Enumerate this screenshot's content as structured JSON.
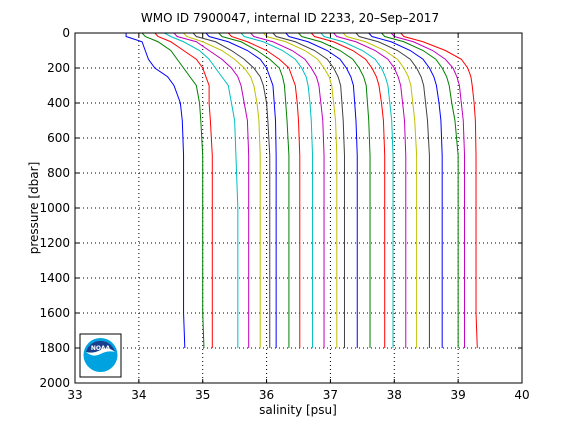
{
  "chart_data": {
    "type": "line",
    "title": "WMO ID 7900047, internal ID 2233, 20–Sep–2017",
    "xlabel": "salinity [psu]",
    "ylabel": "pressure [dbar]",
    "xlim": [
      33,
      40
    ],
    "ylim": [
      2000,
      0
    ],
    "y_reversed": true,
    "grid": true,
    "grid_style": "dotted",
    "xticks": [
      "33",
      "34",
      "35",
      "36",
      "37",
      "38",
      "39",
      "40"
    ],
    "yticks": [
      "0",
      "200",
      "400",
      "600",
      "800",
      "1000",
      "1200",
      "1400",
      "1600",
      "1800",
      "2000"
    ],
    "pressure_levels": [
      0,
      20,
      50,
      100,
      150,
      200,
      250,
      300,
      400,
      500,
      700,
      1000,
      1300,
      1600,
      1800
    ],
    "series": [
      {
        "color": "#0000ff",
        "values": [
          33.8,
          33.8,
          34.05,
          34.1,
          34.15,
          34.25,
          34.45,
          34.55,
          34.65,
          34.68,
          34.7,
          34.7,
          34.7,
          34.7,
          34.72
        ]
      },
      {
        "color": "#008000",
        "values": [
          34.05,
          34.1,
          34.3,
          34.5,
          34.6,
          34.7,
          34.8,
          34.9,
          34.95,
          34.97,
          35.0,
          35.0,
          35.0,
          35.0,
          35.02
        ]
      },
      {
        "color": "#ff0000",
        "values": [
          34.25,
          34.3,
          34.5,
          34.7,
          34.9,
          35.0,
          35.05,
          35.1,
          35.1,
          35.12,
          35.15,
          35.15,
          35.15,
          35.15,
          35.15
        ]
      },
      {
        "color": "#00bfbf",
        "values": [
          34.4,
          34.5,
          34.7,
          34.95,
          35.1,
          35.2,
          35.3,
          35.4,
          35.45,
          35.5,
          35.52,
          35.55,
          35.55,
          35.55,
          35.55
        ]
      },
      {
        "color": "#bf00bf",
        "values": [
          34.55,
          34.6,
          34.9,
          35.1,
          35.3,
          35.45,
          35.55,
          35.6,
          35.65,
          35.7,
          35.72,
          35.72,
          35.72,
          35.72,
          35.72
        ]
      },
      {
        "color": "#bfbf00",
        "values": [
          34.7,
          34.75,
          35.0,
          35.3,
          35.5,
          35.65,
          35.75,
          35.8,
          35.85,
          35.88,
          35.9,
          35.9,
          35.9,
          35.9,
          35.9
        ]
      },
      {
        "color": "#404040",
        "values": [
          34.85,
          34.9,
          35.2,
          35.45,
          35.65,
          35.8,
          35.9,
          35.95,
          36.0,
          36.02,
          36.05,
          36.05,
          36.05,
          36.05,
          36.05
        ]
      },
      {
        "color": "#0000ff",
        "values": [
          35.05,
          35.1,
          35.4,
          35.7,
          35.9,
          36.0,
          36.05,
          36.1,
          36.12,
          36.14,
          36.15,
          36.15,
          36.15,
          36.15,
          36.15
        ]
      },
      {
        "color": "#008000",
        "values": [
          35.25,
          35.3,
          35.6,
          35.85,
          36.05,
          36.2,
          36.25,
          36.28,
          36.3,
          36.32,
          36.35,
          36.35,
          36.35,
          36.35,
          36.35
        ]
      },
      {
        "color": "#ff0000",
        "values": [
          35.4,
          35.45,
          35.7,
          36.0,
          36.2,
          36.35,
          36.4,
          36.45,
          36.48,
          36.5,
          36.52,
          36.52,
          36.52,
          36.52,
          36.52
        ]
      },
      {
        "color": "#00bfbf",
        "values": [
          35.6,
          35.65,
          35.95,
          36.25,
          36.45,
          36.55,
          36.62,
          36.65,
          36.68,
          36.7,
          36.72,
          36.72,
          36.72,
          36.72,
          36.72
        ]
      },
      {
        "color": "#bf00bf",
        "values": [
          35.75,
          35.8,
          36.1,
          36.4,
          36.6,
          36.7,
          36.78,
          36.82,
          36.85,
          36.88,
          36.9,
          36.9,
          36.9,
          36.9,
          36.9
        ]
      },
      {
        "color": "#bfbf00",
        "values": [
          35.95,
          36.0,
          36.3,
          36.6,
          36.8,
          36.9,
          36.98,
          37.02,
          37.05,
          37.08,
          37.1,
          37.1,
          37.1,
          37.1,
          37.1
        ]
      },
      {
        "color": "#404040",
        "values": [
          36.1,
          36.15,
          36.45,
          36.75,
          36.95,
          37.05,
          37.12,
          37.16,
          37.18,
          37.2,
          37.22,
          37.22,
          37.22,
          37.22,
          37.22
        ]
      },
      {
        "color": "#0000ff",
        "values": [
          36.3,
          36.35,
          36.65,
          36.95,
          37.15,
          37.25,
          37.32,
          37.36,
          37.38,
          37.4,
          37.42,
          37.42,
          37.42,
          37.42,
          37.42
        ]
      },
      {
        "color": "#008000",
        "values": [
          36.5,
          36.55,
          36.85,
          37.15,
          37.35,
          37.45,
          37.52,
          37.56,
          37.58,
          37.6,
          37.62,
          37.62,
          37.62,
          37.62,
          37.62
        ]
      },
      {
        "color": "#ff0000",
        "values": [
          36.7,
          36.75,
          37.05,
          37.35,
          37.55,
          37.65,
          37.72,
          37.76,
          37.8,
          37.83,
          37.85,
          37.85,
          37.85,
          37.85,
          37.85
        ]
      },
      {
        "color": "#00bfbf",
        "values": [
          36.85,
          36.9,
          37.2,
          37.5,
          37.7,
          37.8,
          37.86,
          37.9,
          37.93,
          37.96,
          37.98,
          37.98,
          37.98,
          37.98,
          37.98
        ]
      },
      {
        "color": "#bf00bf",
        "values": [
          37.05,
          37.1,
          37.4,
          37.7,
          37.9,
          38.0,
          38.06,
          38.1,
          38.13,
          38.16,
          38.18,
          38.18,
          38.18,
          38.18,
          38.18
        ]
      },
      {
        "color": "#bfbf00",
        "values": [
          37.2,
          37.25,
          37.55,
          37.85,
          38.05,
          38.15,
          38.22,
          38.26,
          38.29,
          38.32,
          38.35,
          38.35,
          38.35,
          38.35,
          38.35
        ]
      },
      {
        "color": "#404040",
        "values": [
          37.4,
          37.45,
          37.75,
          38.05,
          38.25,
          38.35,
          38.42,
          38.46,
          38.49,
          38.52,
          38.55,
          38.55,
          38.55,
          38.55,
          38.55
        ]
      },
      {
        "color": "#0000ff",
        "values": [
          37.6,
          37.65,
          37.95,
          38.25,
          38.45,
          38.55,
          38.62,
          38.66,
          38.7,
          38.73,
          38.75,
          38.75,
          38.75,
          38.75,
          38.75
        ]
      },
      {
        "color": "#008000",
        "values": [
          37.8,
          37.85,
          38.15,
          38.45,
          38.65,
          38.75,
          38.82,
          38.86,
          38.9,
          38.95,
          39.0,
          39.0,
          39.0,
          39.0,
          39.0
        ]
      },
      {
        "color": "#bf00bf",
        "values": [
          37.95,
          38.0,
          38.3,
          38.6,
          38.8,
          38.92,
          38.98,
          39.02,
          39.05,
          39.08,
          39.1,
          39.1,
          39.1,
          39.1,
          39.1
        ]
      },
      {
        "color": "#ff0000",
        "values": [
          38.1,
          38.15,
          38.45,
          38.8,
          39.05,
          39.15,
          39.2,
          39.22,
          39.25,
          39.27,
          39.28,
          39.28,
          39.28,
          39.28,
          39.3
        ]
      }
    ]
  },
  "logo": {
    "text": "NOAA",
    "colors": {
      "outer": "#00a3e0",
      "inner": "#1a3e8c",
      "band": "#ffffff"
    }
  },
  "colors": {
    "axis": "#000000",
    "grid": "#000000",
    "background": "#ffffff"
  }
}
